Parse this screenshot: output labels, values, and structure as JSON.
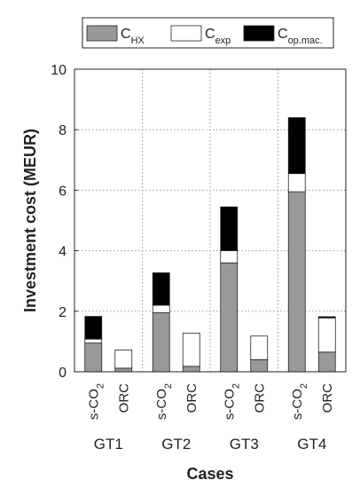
{
  "chart_data": {
    "type": "bar",
    "stacked": true,
    "ylabel": "Investment cost (MEUR)",
    "xlabel": "Cases",
    "ylim": [
      0,
      10
    ],
    "yticks": [
      0,
      2,
      4,
      6,
      8,
      10
    ],
    "grid": true,
    "legend_position": "top",
    "groups": [
      "GT1",
      "GT2",
      "GT3",
      "GT4"
    ],
    "categories": [
      {
        "group": "GT1",
        "label": "s-CO",
        "subscript": "2"
      },
      {
        "group": "GT1",
        "label": "ORC",
        "subscript": ""
      },
      {
        "group": "GT2",
        "label": "s-CO",
        "subscript": "2"
      },
      {
        "group": "GT2",
        "label": "ORC",
        "subscript": ""
      },
      {
        "group": "GT3",
        "label": "s-CO",
        "subscript": "2"
      },
      {
        "group": "GT3",
        "label": "ORC",
        "subscript": ""
      },
      {
        "group": "GT4",
        "label": "s-CO",
        "subscript": "2"
      },
      {
        "group": "GT4",
        "label": "ORC",
        "subscript": ""
      }
    ],
    "series": [
      {
        "main": "C",
        "sub": "HX",
        "color": "#999999",
        "values": [
          0.95,
          0.12,
          1.95,
          0.18,
          3.6,
          0.4,
          5.95,
          0.65
        ]
      },
      {
        "main": "C",
        "sub": "exp",
        "color": "#ffffff",
        "values": [
          0.13,
          0.6,
          0.25,
          1.1,
          0.4,
          0.78,
          0.6,
          1.13
        ]
      },
      {
        "main": "C",
        "sub": "op.mac.",
        "color": "#000000",
        "values": [
          0.75,
          0.0,
          1.07,
          0.0,
          1.45,
          0.0,
          1.85,
          0.04
        ]
      }
    ]
  }
}
